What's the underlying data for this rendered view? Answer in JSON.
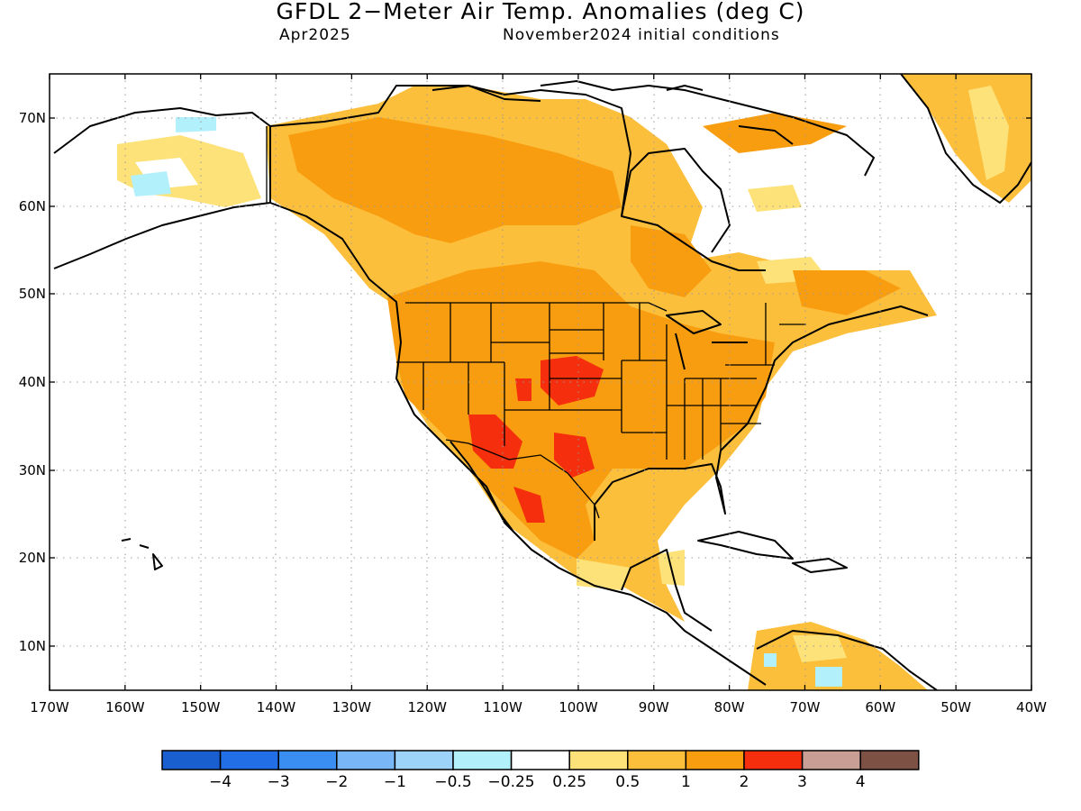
{
  "title": "GFDL 2−Meter Air Temp. Anomalies (deg C)",
  "valid_month": "Apr2025",
  "initial_conditions": "November2024 initial conditions",
  "map": {
    "lon_range": [
      -170,
      -40
    ],
    "lat_range": [
      5,
      75
    ],
    "lat_ticks": [
      "70N",
      "60N",
      "50N",
      "40N",
      "30N",
      "20N",
      "10N"
    ],
    "lon_ticks": [
      "170W",
      "160W",
      "150W",
      "140W",
      "130W",
      "120W",
      "110W",
      "100W",
      "90W",
      "80W",
      "70W",
      "60W",
      "50W",
      "40W"
    ],
    "gridlines": "dotted"
  },
  "colorbar": {
    "colors": [
      "#1a5fcf",
      "#226ee6",
      "#3a8ef2",
      "#78b6f5",
      "#9dd2f9",
      "#b2f0fb",
      "#ffffff",
      "#fde27a",
      "#fcbf3c",
      "#f99d10",
      "#f52e0e",
      "#c99f95",
      "#7d5245"
    ],
    "labels": [
      "−4",
      "−3",
      "−2",
      "−1",
      "−0.5",
      "−0.25",
      "0.25",
      "0.5",
      "1",
      "2",
      "3",
      "4"
    ]
  },
  "colors": {
    "anom_0_25_0_5": "#fde27a",
    "anom_0_5_1": "#fcbf3c",
    "anom_1_2": "#f99d10",
    "anom_2_3": "#f52e0e",
    "anom_neg_0_25_0_5": "#b2f0fb",
    "anom_neg_0_5_1": "#9dd2f9"
  }
}
